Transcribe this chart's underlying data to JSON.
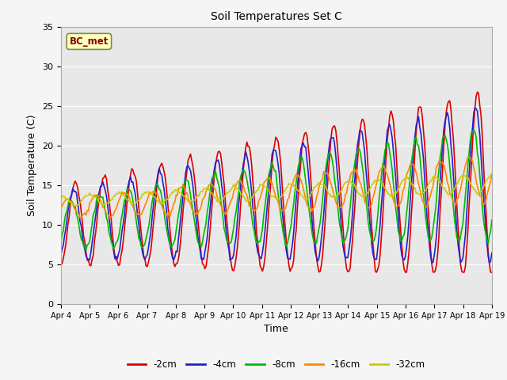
{
  "title": "Soil Temperatures Set C",
  "xlabel": "Time",
  "ylabel": "Soil Temperature (C)",
  "ylim": [
    0,
    35
  ],
  "annotation": "BC_met",
  "legend_labels": [
    "-2cm",
    "-4cm",
    "-8cm",
    "-16cm",
    "-32cm"
  ],
  "colors": [
    "#dd0000",
    "#2222cc",
    "#00bb00",
    "#ff8800",
    "#cccc00"
  ],
  "xtick_labels": [
    "Apr 4",
    "Apr 5",
    "Apr 6",
    "Apr 7",
    "Apr 8",
    "Apr 9",
    "Apr 10",
    "Apr 11",
    "Apr 12",
    "Apr 13",
    "Apr 14",
    "Apr 15",
    "Apr 16",
    "Apr 17",
    "Apr 18",
    "Apr 19"
  ],
  "ytick_labels": [
    "0",
    "5",
    "10",
    "15",
    "20",
    "25",
    "30",
    "35"
  ],
  "figsize": [
    6.4,
    4.8
  ],
  "dpi": 100
}
